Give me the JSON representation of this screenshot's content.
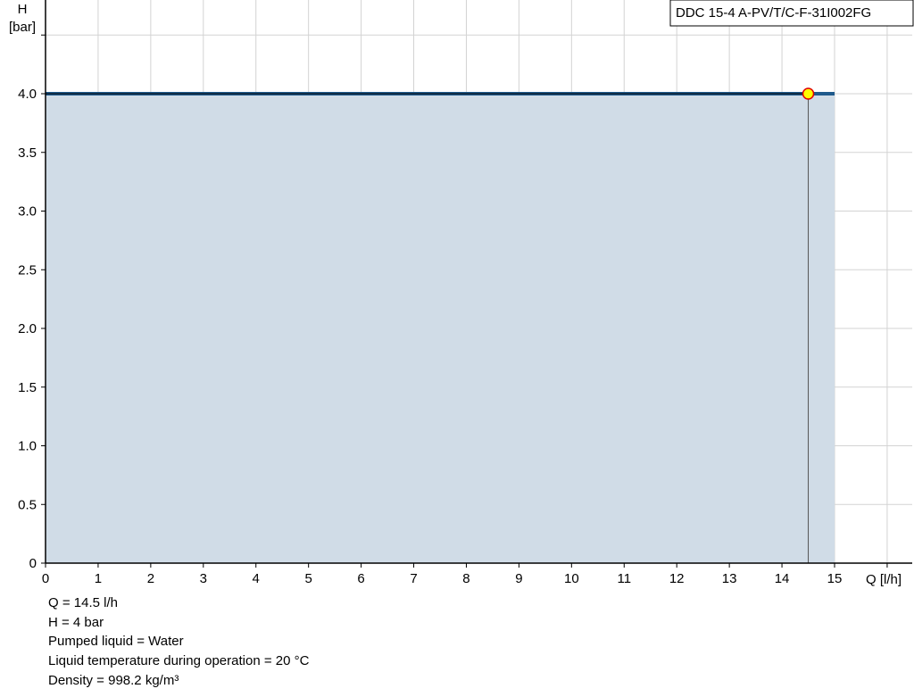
{
  "chart_data": {
    "type": "area",
    "title": "DDC 15-4 A-PV/T/C-F-31I002FG",
    "xlabel": "Q [l/h]",
    "ylabel_line1": "H",
    "ylabel_line2": "[bar]",
    "xlim": [
      0,
      16
    ],
    "ylim": [
      0,
      4.5
    ],
    "xticks": [
      "0",
      "1",
      "2",
      "3",
      "4",
      "5",
      "6",
      "7",
      "8",
      "9",
      "10",
      "11",
      "12",
      "13",
      "14",
      "15"
    ],
    "yticks": [
      "0",
      "0.5",
      "1.0",
      "1.5",
      "2.0",
      "2.5",
      "3.0",
      "3.5",
      "4.0"
    ],
    "grid": true,
    "series": [
      {
        "x": [
          0,
          15
        ],
        "y": [
          4,
          4
        ]
      }
    ],
    "operating_point": {
      "x": 14.5,
      "y": 4
    },
    "colors": {
      "area": "#d0dce7",
      "curve": "#1f5a8c",
      "point_fill": "#ffff00",
      "point_stroke": "#e00000",
      "grid": "#d3d3d3"
    }
  },
  "info": [
    "Q = 14.5 l/h",
    "H = 4 bar",
    "Pumped liquid = Water",
    "Liquid temperature during operation = 20 °C",
    "Density = 998.2 kg/m³"
  ]
}
